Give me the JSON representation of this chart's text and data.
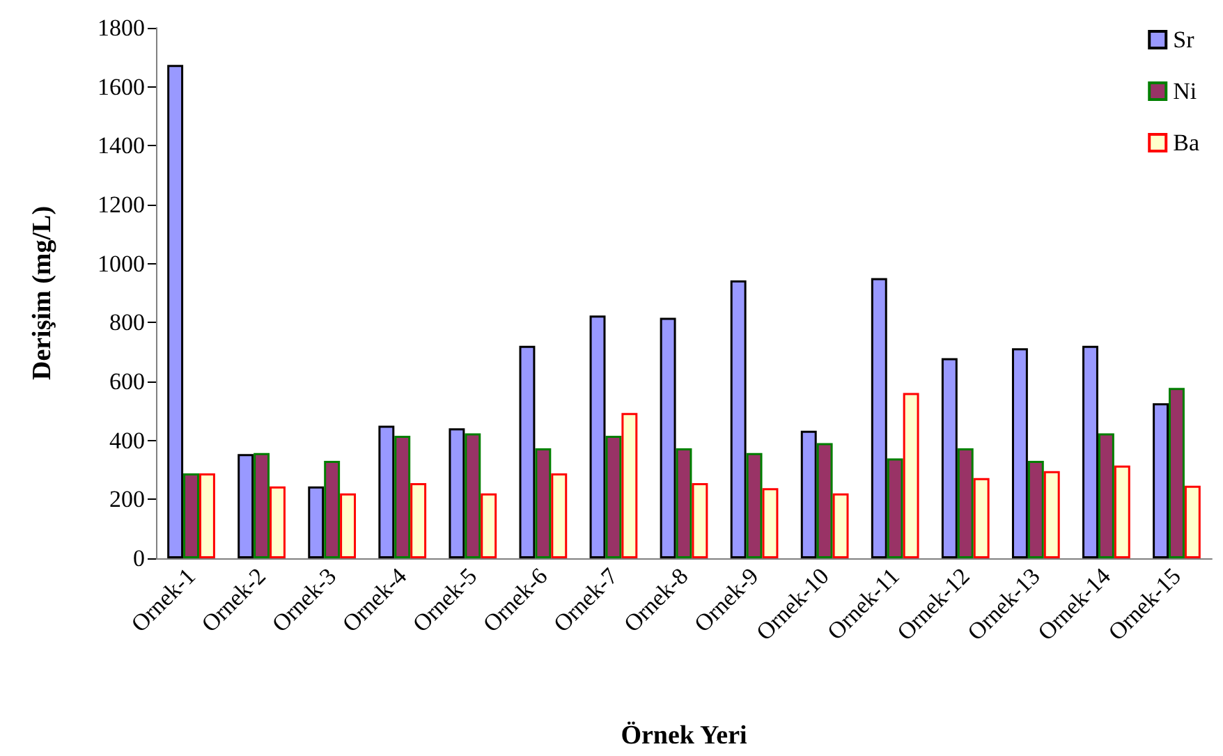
{
  "chart_data": {
    "type": "bar",
    "xlabel": "Örnek Yeri",
    "ylabel": "Derişim (mg/L)",
    "categories": [
      "Ornek-1",
      "Ornek-2",
      "Ornek-3",
      "Ornek-4",
      "Ornek-5",
      "Ornek-6",
      "Ornek-7",
      "Ornek-8",
      "Ornek-9",
      "Ornek-10",
      "Ornek-11",
      "Ornek-12",
      "Ornek-13",
      "Ornek-14",
      "Ornek-15"
    ],
    "series": [
      {
        "name": "Sr",
        "color": "#9999ff",
        "values": [
          1674,
          354,
          244,
          450,
          441,
          721,
          824,
          816,
          943,
          433,
          951,
          679,
          713,
          721,
          526
        ]
      },
      {
        "name": "Ni",
        "color": "#993366",
        "values": [
          288,
          357,
          331,
          416,
          424,
          373,
          416,
          373,
          357,
          391,
          339,
          373,
          331,
          424,
          578
        ]
      },
      {
        "name": "Ba",
        "color": "#ffffcc",
        "values": [
          288,
          244,
          220,
          255,
          220,
          288,
          493,
          255,
          238,
          220,
          561,
          272,
          296,
          315,
          246
        ]
      }
    ],
    "ylim": [
      0,
      1800
    ],
    "yticks": [
      0,
      200,
      400,
      600,
      800,
      1000,
      1200,
      1400,
      1600,
      1800
    ],
    "grid": false,
    "legend": "top right"
  }
}
